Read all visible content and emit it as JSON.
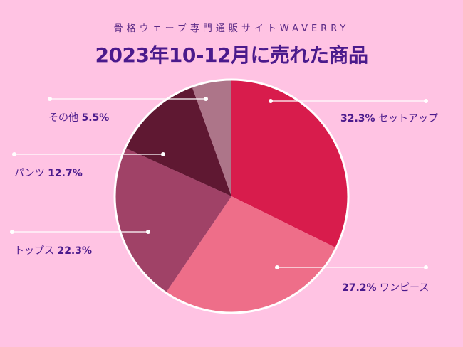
{
  "header": {
    "subtitle": "骨格ウェーブ専門通販サイトWAVERRY",
    "title": "2023年10-12月に売れた商品"
  },
  "chart_data": {
    "type": "pie",
    "title": "2023年10-12月に売れた商品",
    "slices": [
      {
        "label": "セットアップ",
        "value": 32.3,
        "value_text": "32.3%",
        "color": "#d81c4c"
      },
      {
        "label": "ワンピース",
        "value": 27.2,
        "value_text": "27.2%",
        "color": "#ee6e89"
      },
      {
        "label": "トップス",
        "value": 22.3,
        "value_text": "22.3%",
        "color": "#a04267"
      },
      {
        "label": "パンツ",
        "value": 12.7,
        "value_text": "12.7%",
        "color": "#5f1832"
      },
      {
        "label": "その他",
        "value": 5.5,
        "value_text": "5.5%",
        "color": "#ad7589"
      }
    ],
    "start": "top",
    "direction": "clockwise"
  }
}
